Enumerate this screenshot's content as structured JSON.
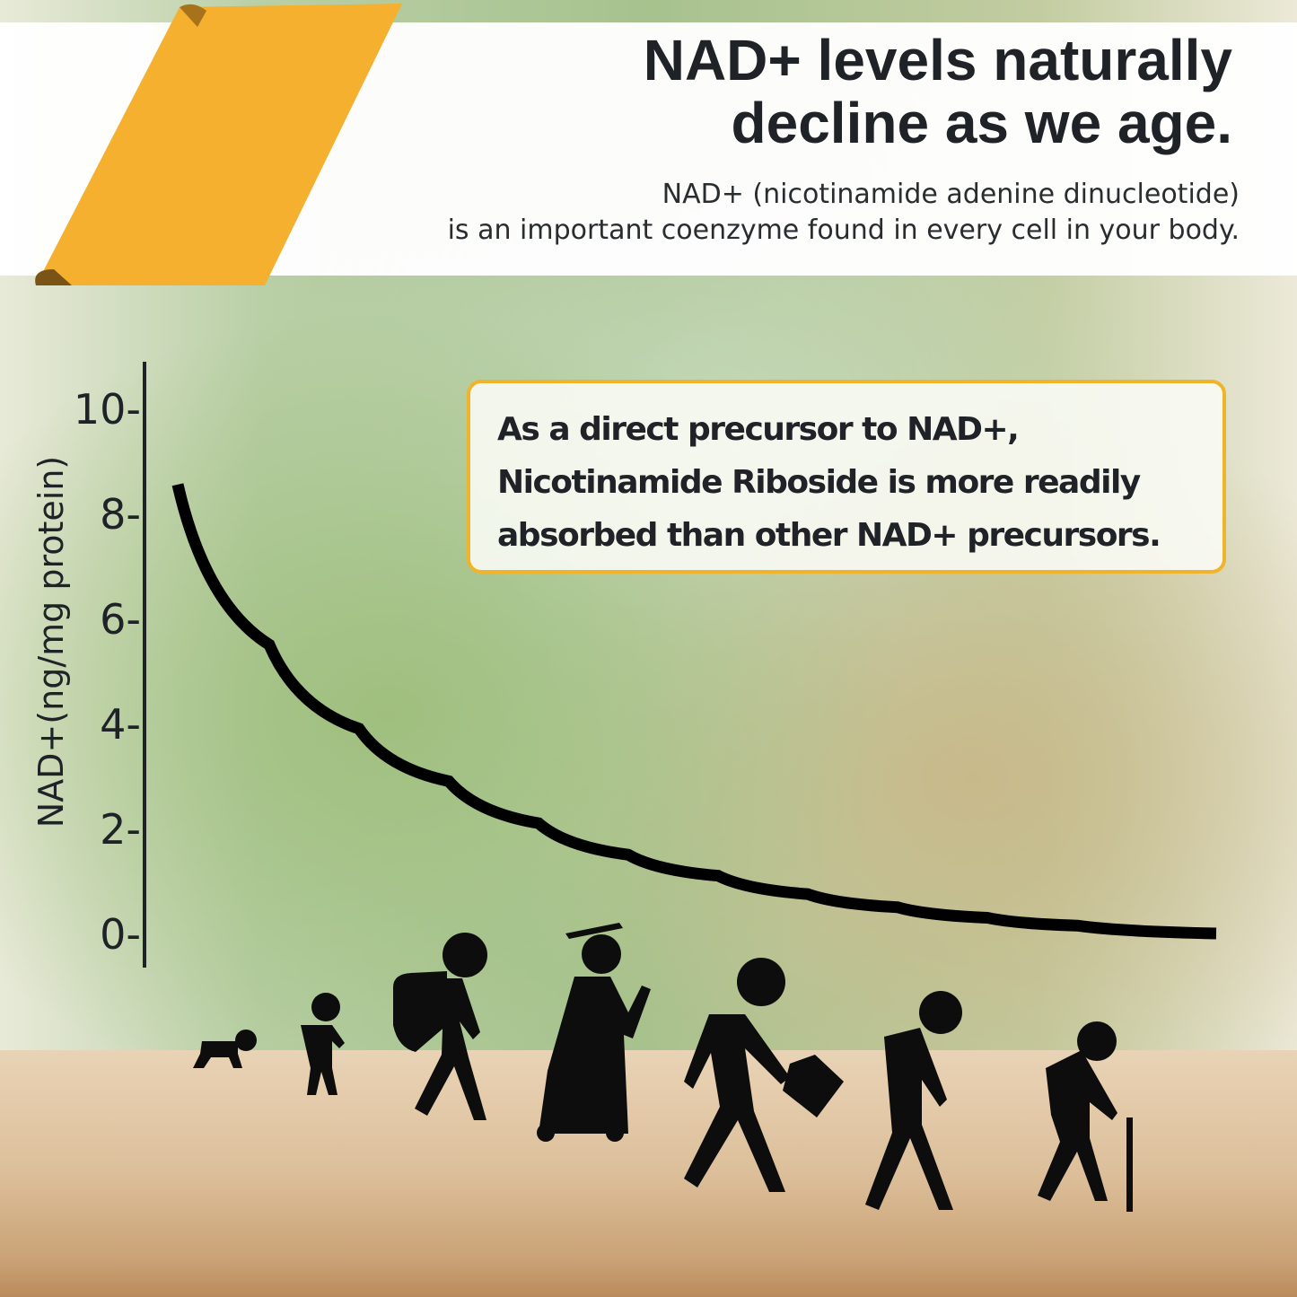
{
  "header": {
    "title_line1": "NAD+ levels naturally",
    "title_line2": "decline as we age.",
    "subtitle_line1": "NAD+ (nicotinamide adenine dinucleotide)",
    "subtitle_line2": "is an important coenzyme found in every cell in your body."
  },
  "callout": {
    "line1": "As a direct precursor to NAD+,",
    "line2": "Nicotinamide Riboside  is more readily",
    "line3": "absorbed than other NAD+ precursors."
  },
  "colors": {
    "accent": "#f0b42a",
    "text": "#1f2328",
    "curve": "#000000"
  },
  "chart_data": {
    "type": "line",
    "title": "",
    "xlabel": "",
    "ylabel": "NAD+(ng/mg protein)",
    "ylim": [
      0,
      10
    ],
    "yticks": [
      "0-",
      "2-",
      "4-",
      "6-",
      "8-",
      "10-"
    ],
    "ytick_values": [
      0,
      2,
      4,
      6,
      8,
      10
    ],
    "x_categories_icons": [
      "crawling-baby",
      "toddler",
      "student-with-backpack",
      "graduate",
      "adult-with-briefcase",
      "middle-aged",
      "elderly-with-cane"
    ],
    "series": [
      {
        "values": [
          8.55,
          5.5,
          3.9,
          2.9,
          2.1,
          1.5,
          1.1,
          0.75,
          0.5,
          0.3,
          0.15,
          0
        ]
      }
    ]
  }
}
